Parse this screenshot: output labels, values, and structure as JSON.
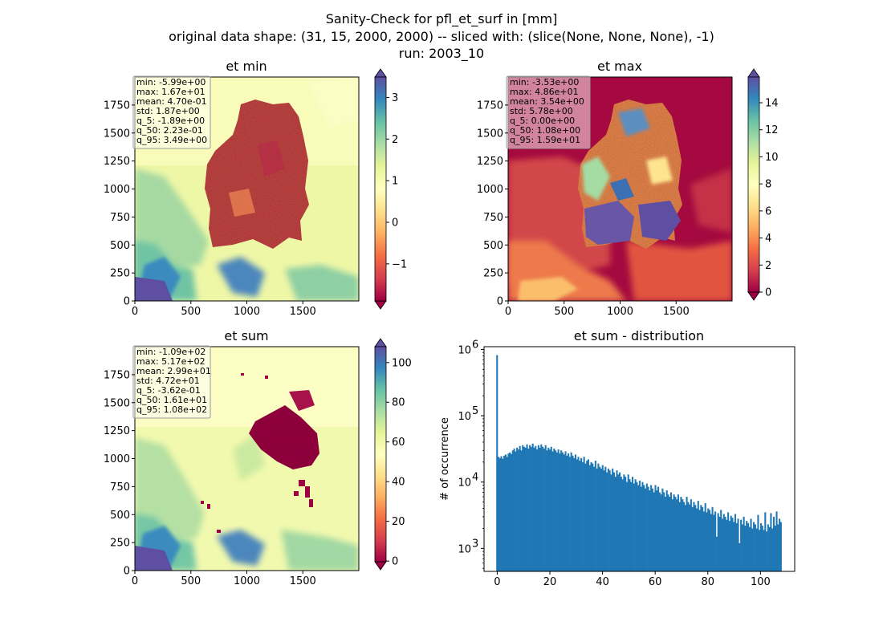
{
  "figure": {
    "suptitle": [
      "Sanity-Check for pfl_et_surf in [mm]",
      "original data shape: (31, 15, 2000, 2000) -- sliced with: (slice(None, None, None), -1)",
      "run: 2003_10"
    ]
  },
  "chart_data": [
    {
      "type": "heatmap",
      "title": "et min",
      "colormap": "Spectral",
      "colorbar": {
        "ticks": [
          3,
          2,
          1,
          0,
          -1
        ],
        "tick_labels": [
          "3",
          "2",
          "1",
          "0",
          "−1"
        ],
        "range": [
          -1.89,
          3.49
        ],
        "extend": "both"
      },
      "x_ticks": [
        0,
        500,
        1000,
        1500
      ],
      "y_ticks": [
        0,
        250,
        500,
        750,
        1000,
        1250,
        1500,
        1750
      ],
      "xlim": [
        0,
        2000
      ],
      "ylim": [
        0,
        2000
      ],
      "stats": [
        "min: -5.99e+00",
        "max: 1.67e+01",
        "mean: 4.70e-01",
        "std: 1.87e+00",
        "q_5: -1.89e+00",
        "q_50: 2.23e-01",
        "q_95: 3.49e+00"
      ]
    },
    {
      "type": "heatmap",
      "title": "et max",
      "colormap": "Spectral",
      "colorbar": {
        "ticks": [
          14,
          12,
          10,
          8,
          6,
          4,
          2,
          0
        ],
        "tick_labels": [
          "14",
          "12",
          "10",
          "8",
          "6",
          "4",
          "2",
          "0"
        ],
        "range": [
          0,
          15.9
        ],
        "extend": "both"
      },
      "x_ticks": [
        0,
        500,
        1000,
        1500
      ],
      "y_ticks": [
        0,
        250,
        500,
        750,
        1000,
        1250,
        1500,
        1750
      ],
      "xlim": [
        0,
        2000
      ],
      "ylim": [
        0,
        2000
      ],
      "stats": [
        "min: -3.53e+00",
        "max: 4.86e+01",
        "mean: 3.54e+00",
        "std: 5.78e+00",
        "q_5: 0.00e+00",
        "q_50: 1.08e+00",
        "q_95: 1.59e+01"
      ]
    },
    {
      "type": "heatmap",
      "title": "et sum",
      "colormap": "Spectral",
      "colorbar": {
        "ticks": [
          100,
          80,
          60,
          40,
          20,
          0
        ],
        "tick_labels": [
          "100",
          "80",
          "60",
          "40",
          "20",
          "0"
        ],
        "range": [
          -0.362,
          108
        ],
        "extend": "both"
      },
      "x_ticks": [
        0,
        500,
        1000,
        1500
      ],
      "y_ticks": [
        0,
        250,
        500,
        750,
        1000,
        1250,
        1500,
        1750
      ],
      "xlim": [
        0,
        2000
      ],
      "ylim": [
        0,
        2000
      ],
      "stats": [
        "min: -1.09e+02",
        "max: 5.17e+02",
        "mean: 2.99e+01",
        "std: 4.72e+01",
        "q_5: -3.62e-01",
        "q_50: 1.61e+01",
        "q_95: 1.08e+02"
      ]
    },
    {
      "type": "bar",
      "title": "et sum - distribution",
      "xlabel": "",
      "ylabel": "# of occurrence",
      "yscale": "log",
      "xlim": [
        -5,
        113
      ],
      "ylim": [
        450,
        1100000
      ],
      "x_ticks": [
        0,
        20,
        40,
        60,
        80,
        100
      ],
      "x_tick_labels": [
        "0",
        "20",
        "40",
        "60",
        "80",
        "100"
      ],
      "y_ticks": [
        1000,
        10000,
        100000,
        1000000
      ],
      "y_tick_labels": [
        "10",
        "10",
        "10",
        "10"
      ],
      "y_tick_exponents": [
        "3",
        "4",
        "5",
        "6"
      ],
      "bar_color": "#1f77b4",
      "bin_start": -0.362,
      "bin_end": 108,
      "counts": [
        820000,
        24000,
        23000,
        24500,
        22500,
        25000,
        26000,
        24000,
        27000,
        28000,
        26500,
        30000,
        32000,
        29000,
        33000,
        31000,
        35000,
        30000,
        36000,
        34000,
        33000,
        37000,
        32000,
        36000,
        34000,
        38000,
        33000,
        35000,
        31000,
        36000,
        33000,
        37000,
        34000,
        32000,
        36000,
        30000,
        33000,
        31000,
        34000,
        29000,
        32000,
        30000,
        28000,
        31000,
        27000,
        30000,
        28000,
        26000,
        29000,
        25000,
        27000,
        24000,
        28000,
        25000,
        23000,
        26000,
        22000,
        24000,
        21000,
        23000,
        20000,
        24000,
        19000,
        21000,
        22000,
        18000,
        20000,
        19000,
        17000,
        21000,
        16000,
        19000,
        17000,
        16000,
        18000,
        15000,
        17000,
        14000,
        16000,
        15000,
        13000,
        16000,
        14000,
        12000,
        15000,
        13000,
        14000,
        12000,
        11000,
        13000,
        12000,
        10000,
        13000,
        11000,
        10000,
        12000,
        9500,
        11000,
        10000,
        9000,
        10500,
        8500,
        10000,
        9000,
        8000,
        9500,
        8500,
        7500,
        9000,
        8000,
        7000,
        9000,
        7500,
        8500,
        7000,
        6500,
        8000,
        7000,
        6000,
        7500,
        6500,
        6000,
        7000,
        5500,
        6500,
        6000,
        5500,
        6500,
        5000,
        6000,
        5500,
        5000,
        4500,
        6000,
        5000,
        4600,
        5500,
        4200,
        5000,
        4500,
        4000,
        5200,
        3800,
        4500,
        4200,
        3600,
        4800,
        3500,
        4000,
        3800,
        3300,
        4200,
        3200,
        3600,
        1500,
        3400,
        3000,
        3800,
        2800,
        3300,
        3000,
        2700,
        3500,
        2600,
        3100,
        2900,
        2500,
        3300,
        2400,
        2800,
        1200,
        2700,
        2300,
        3000,
        2200,
        2600,
        2400,
        2100,
        2800,
        2000,
        2500,
        2300,
        2000,
        3200,
        1900,
        2400,
        2200,
        1900,
        3500,
        1800,
        2300,
        2100,
        3400,
        2000,
        3000,
        2200,
        3600,
        2300,
        2800,
        2500
      ]
    }
  ]
}
